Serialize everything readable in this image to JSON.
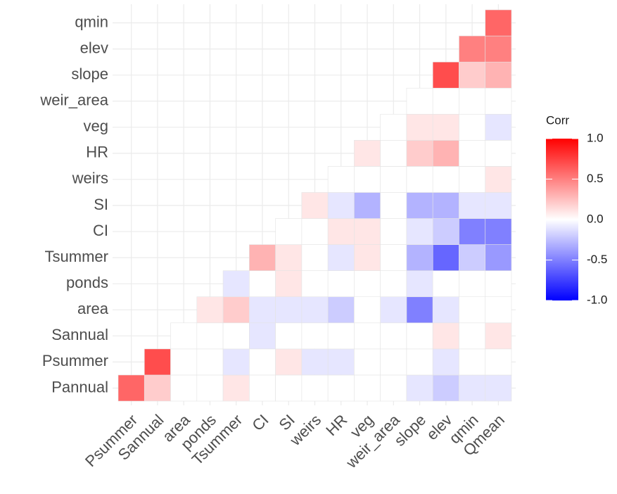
{
  "chart_data": {
    "type": "heatmap",
    "x": [
      "Psummer",
      "Sannual",
      "area",
      "ponds",
      "Tsummer",
      "CI",
      "SI",
      "weirs",
      "HR",
      "veg",
      "weir_area",
      "slope",
      "elev",
      "qmin",
      "Qmean"
    ],
    "y": [
      "Pannual",
      "Psummer",
      "Sannual",
      "area",
      "ponds",
      "Tsummer",
      "CI",
      "SI",
      "weirs",
      "HR",
      "veg",
      "weir_area",
      "slope",
      "elev",
      "qmin"
    ],
    "values": [
      [
        0.6,
        0.2,
        0,
        0,
        0.1,
        0,
        0,
        0,
        0,
        0,
        0,
        -0.1,
        -0.2,
        -0.1,
        -0.1
      ],
      [
        null,
        0.7,
        0,
        0,
        -0.1,
        0,
        0.1,
        -0.1,
        -0.1,
        0,
        0,
        0,
        -0.1,
        0,
        0
      ],
      [
        null,
        null,
        0,
        0,
        0,
        -0.1,
        0,
        0,
        0,
        0,
        0,
        0,
        0.1,
        0,
        0.1
      ],
      [
        null,
        null,
        null,
        0.1,
        0.2,
        -0.1,
        -0.1,
        -0.1,
        -0.2,
        0,
        -0.1,
        -0.5,
        -0.1,
        0,
        0
      ],
      [
        null,
        null,
        null,
        null,
        -0.1,
        0,
        0.1,
        0,
        0,
        0,
        0,
        -0.1,
        0,
        0,
        0
      ],
      [
        null,
        null,
        null,
        null,
        null,
        0.3,
        0.1,
        0,
        -0.1,
        0.1,
        0,
        -0.3,
        -0.6,
        -0.2,
        -0.4
      ],
      [
        null,
        null,
        null,
        null,
        null,
        null,
        0,
        0,
        0.1,
        0.1,
        0,
        -0.1,
        -0.2,
        -0.5,
        -0.5
      ],
      [
        null,
        null,
        null,
        null,
        null,
        null,
        null,
        0.1,
        -0.1,
        -0.3,
        0,
        -0.3,
        -0.3,
        -0.1,
        -0.1
      ],
      [
        null,
        null,
        null,
        null,
        null,
        null,
        null,
        null,
        0,
        0,
        0,
        0,
        0,
        0,
        0.1
      ],
      [
        null,
        null,
        null,
        null,
        null,
        null,
        null,
        null,
        null,
        0.1,
        0,
        0.2,
        0.3,
        0,
        0
      ],
      [
        null,
        null,
        null,
        null,
        null,
        null,
        null,
        null,
        null,
        null,
        0,
        0.1,
        0.1,
        0,
        -0.1
      ],
      [
        null,
        null,
        null,
        null,
        null,
        null,
        null,
        null,
        null,
        null,
        null,
        0,
        0,
        0,
        0
      ],
      [
        null,
        null,
        null,
        null,
        null,
        null,
        null,
        null,
        null,
        null,
        null,
        null,
        0.7,
        0.2,
        0.3
      ],
      [
        null,
        null,
        null,
        null,
        null,
        null,
        null,
        null,
        null,
        null,
        null,
        null,
        null,
        0.5,
        0.5
      ],
      [
        null,
        null,
        null,
        null,
        null,
        null,
        null,
        null,
        null,
        null,
        null,
        null,
        null,
        null,
        0.6
      ]
    ],
    "legend_title": "Corr",
    "colors": {
      "low": "#0000ff",
      "mid": "#ffffff",
      "high": "#ff0000"
    },
    "clim": [
      -1,
      1
    ],
    "cticks": [
      {
        "value": 1,
        "label": "1.0"
      },
      0.5,
      {
        "value": 0,
        "label": "0.0"
      },
      -0.5,
      {
        "value": -1,
        "label": "-1.0"
      }
    ],
    "grid": true
  }
}
